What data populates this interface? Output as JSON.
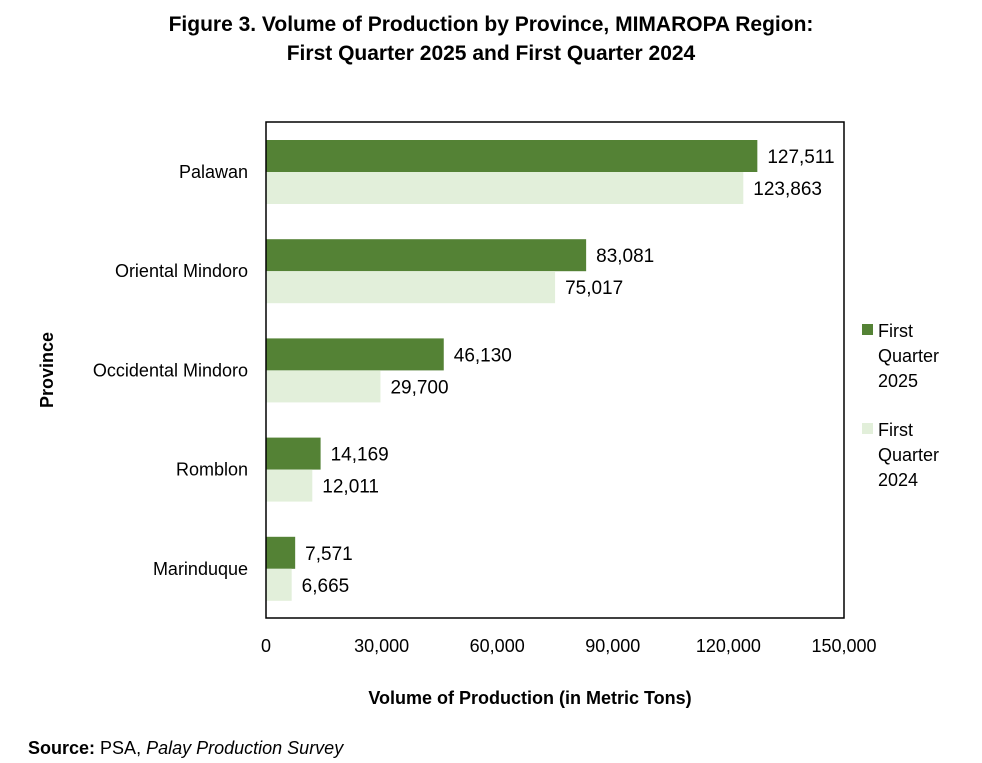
{
  "title_line1": "Figure 3. Volume of Production by Province, MIMAROPA Region:",
  "title_line2": "First Quarter 2025 and First Quarter 2024",
  "source": {
    "label": "Source:",
    "org": "PSA,",
    "survey": "Palay Production Survey"
  },
  "chart_data": {
    "type": "bar",
    "orientation": "horizontal",
    "title": "Figure 3. Volume of Production by Province, MIMAROPA Region: First Quarter 2025 and First Quarter 2024",
    "xlabel": "Volume of Production (in Metric Tons)",
    "ylabel": "Province",
    "xlim": [
      0,
      150000
    ],
    "x_ticks": [
      0,
      30000,
      60000,
      90000,
      120000,
      150000
    ],
    "x_tick_labels": [
      "0",
      "30,000",
      "60,000",
      "90,000",
      "120,000",
      "150,000"
    ],
    "categories": [
      "Palawan",
      "Oriental Mindoro",
      "Occidental Mindoro",
      "Romblon",
      "Marinduque"
    ],
    "series": [
      {
        "name": "First Quarter 2025",
        "legend_lines": [
          "First",
          "Quarter",
          "2025"
        ],
        "color": "#548235",
        "values": [
          127511,
          83081,
          46130,
          14169,
          7571
        ],
        "labels": [
          "127,511",
          "83,081",
          "46,130",
          "14,169",
          "7,571"
        ]
      },
      {
        "name": "First Quarter 2024",
        "legend_lines": [
          "First",
          "Quarter",
          "2024"
        ],
        "color": "#e2efda",
        "values": [
          123863,
          75017,
          29700,
          12011,
          6665
        ],
        "labels": [
          "123,863",
          "75,017",
          "29,700",
          "12,011",
          "6,665"
        ]
      }
    ],
    "grid": false,
    "legend_position": "right"
  }
}
